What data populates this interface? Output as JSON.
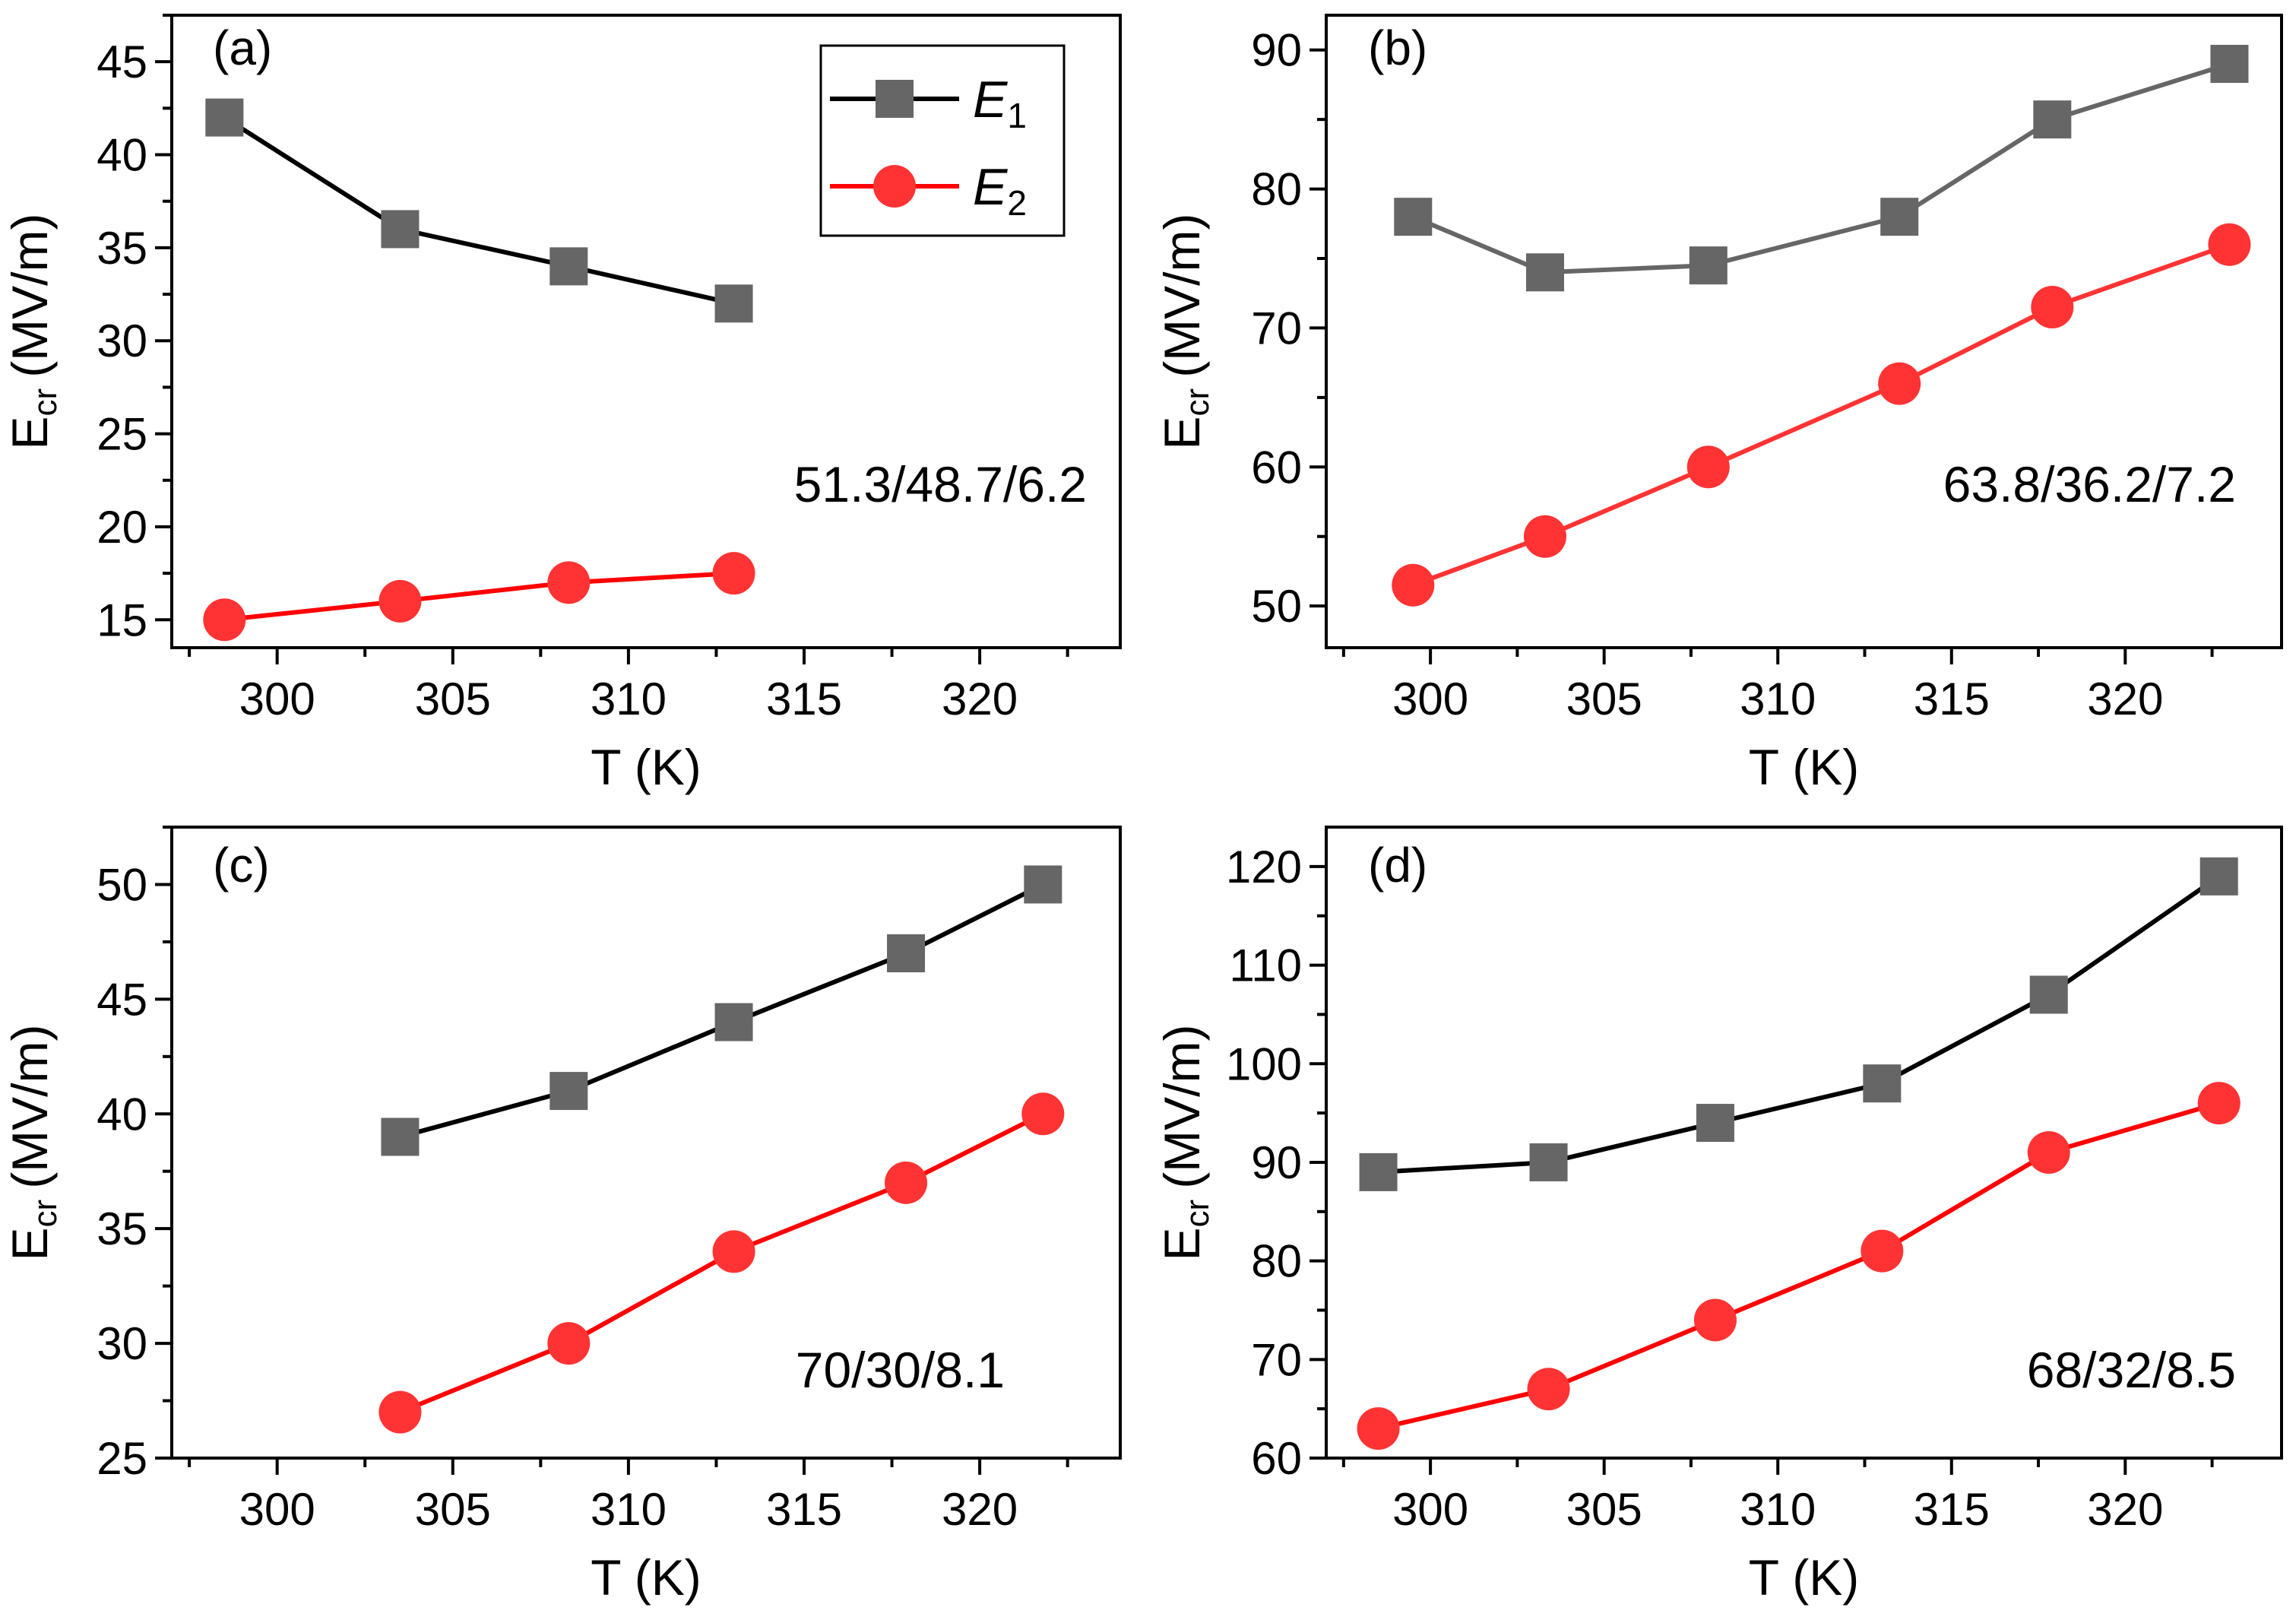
{
  "chart_data": [
    {
      "type": "line",
      "panel_label": "(a)",
      "annotation": "51.3/48.7/6.2",
      "xlabel": "T (K)",
      "ylabel": "E",
      "ylabel_sub": "cr",
      "ylabel_unit": "(MV/m)",
      "xlim": [
        297,
        324
      ],
      "ylim": [
        13.5,
        47.5
      ],
      "xticks": [
        300,
        305,
        310,
        315,
        320
      ],
      "yticks": [
        15,
        20,
        25,
        30,
        35,
        40,
        45
      ],
      "legend": {
        "entries": [
          {
            "symbol": "E",
            "sub": "1"
          },
          {
            "symbol": "E",
            "sub": "2"
          }
        ],
        "placement": "top-right"
      },
      "series": [
        {
          "name": "E1",
          "marker": "square",
          "color": "#000000",
          "marker_color": "#666666",
          "x": [
            298.5,
            303.5,
            308.3,
            313.0
          ],
          "y": [
            42,
            36,
            34,
            32
          ]
        },
        {
          "name": "E2",
          "marker": "circle",
          "color": "#ff0000",
          "marker_color": "#ff3333",
          "x": [
            298.5,
            303.5,
            308.3,
            313.0
          ],
          "y": [
            15,
            16,
            17,
            17.5
          ]
        }
      ]
    },
    {
      "type": "line",
      "panel_label": "(b)",
      "annotation": "63.8/36.2/7.2",
      "xlabel": "T (K)",
      "ylabel": "E",
      "ylabel_sub": "cr",
      "ylabel_unit": "(MV/m)",
      "xlim": [
        297,
        324.5
      ],
      "ylim": [
        47,
        92.5
      ],
      "xticks": [
        300,
        305,
        310,
        315,
        320
      ],
      "yticks": [
        50,
        60,
        70,
        80,
        90
      ],
      "series": [
        {
          "name": "E1",
          "marker": "square",
          "color": "#666666",
          "marker_color": "#666666",
          "x": [
            299.5,
            303.3,
            308.0,
            313.5,
            317.9,
            323.0
          ],
          "y": [
            78,
            74,
            74.5,
            78,
            85,
            89
          ]
        },
        {
          "name": "E2",
          "marker": "circle",
          "color": "#ff3333",
          "marker_color": "#ff3333",
          "x": [
            299.5,
            303.3,
            308.0,
            313.5,
            317.9,
            323.0
          ],
          "y": [
            51.5,
            55,
            60,
            66,
            71.5,
            76
          ]
        }
      ]
    },
    {
      "type": "line",
      "panel_label": "(c)",
      "annotation": "70/30/8.1",
      "xlabel": "T (K)",
      "ylabel": "E",
      "ylabel_sub": "cr",
      "ylabel_unit": "(MV/m)",
      "xlim": [
        297,
        324
      ],
      "ylim": [
        25,
        52.5
      ],
      "xticks": [
        300,
        305,
        310,
        315,
        320
      ],
      "yticks": [
        25,
        30,
        35,
        40,
        45,
        50
      ],
      "series": [
        {
          "name": "E1",
          "marker": "square",
          "color": "#000000",
          "marker_color": "#666666",
          "x": [
            303.5,
            308.3,
            313.0,
            317.9,
            321.8
          ],
          "y": [
            39,
            41,
            44,
            47,
            50
          ]
        },
        {
          "name": "E2",
          "marker": "circle",
          "color": "#ff0000",
          "marker_color": "#ff3333",
          "x": [
            303.5,
            308.3,
            313.0,
            317.9,
            321.8
          ],
          "y": [
            27,
            30,
            34,
            37,
            40
          ]
        }
      ]
    },
    {
      "type": "line",
      "panel_label": "(d)",
      "annotation": "68/32/8.5",
      "xlabel": "T (K)",
      "ylabel": "E",
      "ylabel_sub": "cr",
      "ylabel_unit": "(MV/m)",
      "xlim": [
        297,
        324.5
      ],
      "ylim": [
        60,
        124
      ],
      "xticks": [
        300,
        305,
        310,
        315,
        320
      ],
      "yticks": [
        60,
        70,
        80,
        90,
        100,
        110,
        120
      ],
      "series": [
        {
          "name": "E1",
          "marker": "square",
          "color": "#000000",
          "marker_color": "#666666",
          "x": [
            298.5,
            303.4,
            308.2,
            313.0,
            317.8,
            322.7
          ],
          "y": [
            89,
            90,
            94,
            98,
            107,
            119
          ]
        },
        {
          "name": "E2",
          "marker": "circle",
          "color": "#ff0000",
          "marker_color": "#ff3333",
          "x": [
            298.5,
            303.4,
            308.2,
            313.0,
            317.8,
            322.7
          ],
          "y": [
            63,
            67,
            74,
            81,
            91,
            96
          ]
        }
      ]
    }
  ]
}
